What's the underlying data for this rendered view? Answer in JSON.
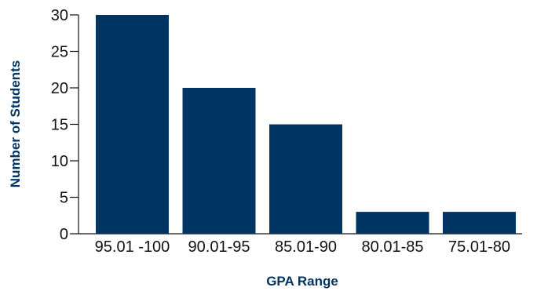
{
  "colors": {
    "bar": "#003462",
    "axis_title": "#003462",
    "axis_line": "#111111",
    "tick_text": "#111111"
  },
  "chart_data": {
    "type": "bar",
    "title": "",
    "xlabel": "GPA Range",
    "ylabel": "Number of Students",
    "categories": [
      "95.01 -100",
      "90.01-95",
      "85.01-90",
      "80.01-85",
      "75.01-80"
    ],
    "values": [
      30,
      20,
      15,
      3,
      3
    ],
    "ylim": [
      0,
      30
    ],
    "yticks": [
      "0",
      "5",
      "10",
      "15",
      "20",
      "25",
      "30"
    ],
    "grid": false,
    "legend": "none"
  }
}
